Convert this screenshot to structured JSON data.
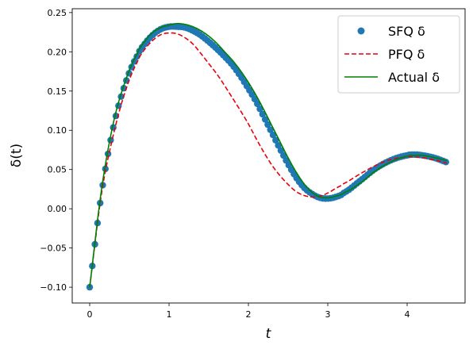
{
  "chart_data": {
    "type": "line",
    "title": "",
    "xlabel": "t",
    "ylabel": "δ(t)",
    "xlim": [
      -0.22,
      4.73
    ],
    "ylim": [
      -0.1201,
      0.2549
    ],
    "xticks": [
      0,
      1,
      2,
      3,
      4
    ],
    "xtick_labels": [
      "0",
      "1",
      "2",
      "3",
      "4"
    ],
    "yticks": [
      -0.1,
      -0.05,
      0.0,
      0.05,
      0.1,
      0.15,
      0.2,
      0.25
    ],
    "ytick_labels": [
      "−0.10",
      "−0.05",
      "0.00",
      "0.05",
      "0.10",
      "0.15",
      "0.20",
      "0.25"
    ],
    "grid": false,
    "legend_position": "top-right",
    "series": [
      {
        "name": "SFQ δ",
        "style": "scatter",
        "color": "#1f77b4",
        "x_range": [
          0,
          4.5
        ],
        "step": 0.033,
        "knots_x": [
          0,
          0.15,
          0.3,
          0.45,
          0.6,
          0.7,
          0.8,
          0.9,
          1.0,
          1.1,
          1.2,
          1.3,
          1.4,
          1.5,
          1.6,
          1.7,
          1.8,
          1.9,
          2.0,
          2.1,
          2.2,
          2.3,
          2.4,
          2.5,
          2.6,
          2.7,
          2.8,
          2.9,
          3.0,
          3.1,
          3.2,
          3.4,
          3.6,
          3.8,
          4.0,
          4.1,
          4.2,
          4.3,
          4.4,
          4.5
        ],
        "knots_y": [
          -0.1,
          0.02,
          0.105,
          0.16,
          0.195,
          0.211,
          0.222,
          0.229,
          0.232,
          0.232,
          0.231,
          0.227,
          0.221,
          0.213,
          0.204,
          0.194,
          0.183,
          0.169,
          0.153,
          0.136,
          0.116,
          0.096,
          0.076,
          0.057,
          0.04,
          0.027,
          0.019,
          0.014,
          0.013,
          0.015,
          0.02,
          0.035,
          0.051,
          0.062,
          0.068,
          0.069,
          0.068,
          0.066,
          0.063,
          0.059
        ]
      },
      {
        "name": "PFQ δ",
        "style": "dashed",
        "color": "#e8000b",
        "knots_x": [
          0,
          0.15,
          0.3,
          0.45,
          0.6,
          0.7,
          0.8,
          0.9,
          1.0,
          1.1,
          1.2,
          1.3,
          1.4,
          1.5,
          1.6,
          1.7,
          1.8,
          1.9,
          2.0,
          2.1,
          2.2,
          2.3,
          2.4,
          2.5,
          2.6,
          2.7,
          2.8,
          2.9,
          3.0,
          3.1,
          3.2,
          3.4,
          3.6,
          3.8,
          4.0,
          4.1,
          4.2,
          4.3,
          4.4,
          4.5
        ],
        "knots_y": [
          -0.1,
          0.02,
          0.095,
          0.15,
          0.187,
          0.204,
          0.215,
          0.222,
          0.224,
          0.223,
          0.218,
          0.21,
          0.198,
          0.185,
          0.172,
          0.157,
          0.141,
          0.125,
          0.108,
          0.089,
          0.071,
          0.055,
          0.042,
          0.031,
          0.022,
          0.017,
          0.015,
          0.016,
          0.02,
          0.026,
          0.032,
          0.044,
          0.055,
          0.063,
          0.066,
          0.066,
          0.065,
          0.063,
          0.061,
          0.058
        ]
      },
      {
        "name": "Actual δ",
        "style": "solid",
        "color": "#008000",
        "knots_x": [
          0,
          0.15,
          0.3,
          0.45,
          0.6,
          0.7,
          0.8,
          0.9,
          1.0,
          1.1,
          1.2,
          1.3,
          1.4,
          1.5,
          1.6,
          1.7,
          1.8,
          1.9,
          2.0,
          2.1,
          2.2,
          2.3,
          2.4,
          2.5,
          2.6,
          2.7,
          2.8,
          2.9,
          3.0,
          3.1,
          3.2,
          3.4,
          3.6,
          3.8,
          4.0,
          4.1,
          4.2,
          4.3,
          4.4,
          4.5
        ],
        "knots_y": [
          -0.1,
          0.025,
          0.11,
          0.163,
          0.198,
          0.214,
          0.225,
          0.231,
          0.234,
          0.236,
          0.235,
          0.232,
          0.227,
          0.22,
          0.211,
          0.2,
          0.189,
          0.176,
          0.161,
          0.144,
          0.125,
          0.105,
          0.085,
          0.065,
          0.047,
          0.032,
          0.021,
          0.015,
          0.014,
          0.016,
          0.02,
          0.032,
          0.048,
          0.06,
          0.067,
          0.068,
          0.068,
          0.066,
          0.064,
          0.061
        ]
      }
    ]
  }
}
